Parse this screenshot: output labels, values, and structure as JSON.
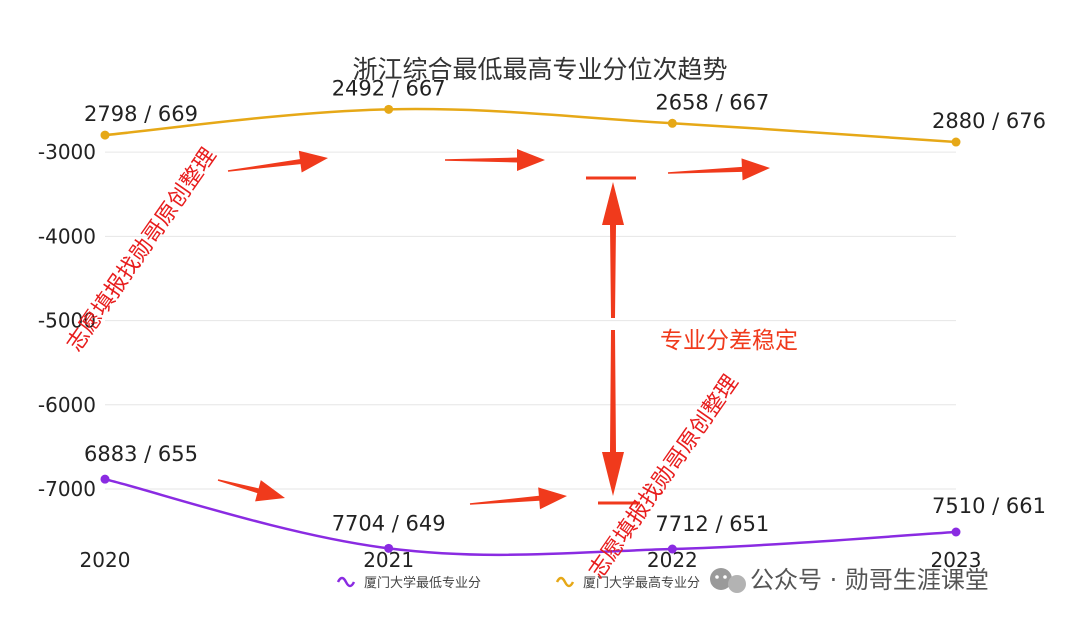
{
  "chart_data": {
    "type": "line",
    "title": "浙江综合最低最高专业分位次趋势",
    "categories": [
      "2020",
      "2021",
      "2022",
      "2023"
    ],
    "y_axis": {
      "min": -7700,
      "max": -2500,
      "ticks": [
        -3000,
        -4000,
        -5000,
        -6000,
        -7000
      ],
      "tick_labels": [
        "-3000",
        "-4000",
        "-5000",
        "-6000",
        "-7000"
      ],
      "grid": true
    },
    "series": [
      {
        "name": "厦门大学最低专业分",
        "color": "#8a2be2",
        "values": [
          -6883,
          -7704,
          -7712,
          -7510
        ],
        "labels": [
          "6883 / 655",
          "7704 / 649",
          "7712 / 651",
          "7510 / 661"
        ]
      },
      {
        "name": "厦门大学最高专业分",
        "color": "#e6a817",
        "values": [
          -2798,
          -2492,
          -2658,
          -2880
        ],
        "labels": [
          "2798 / 669",
          "2492 / 667",
          "2658 / 667",
          "2880 / 676"
        ]
      }
    ],
    "legend_position": "bottom",
    "annotation": "专业分差稳定"
  },
  "watermarks": [
    "志愿填报找勋哥原创整理",
    "志愿填报找勋哥原创整理"
  ],
  "footer": {
    "brand": "公众号 · 勋哥生涯课堂"
  },
  "colors": {
    "arrow": "#f03a1c",
    "grid": "#e6e6e6"
  }
}
